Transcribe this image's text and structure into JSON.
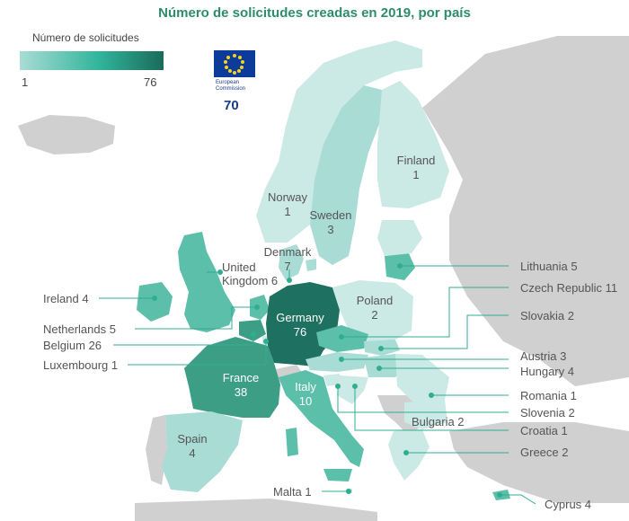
{
  "title": "Número de solicitudes creadas en 2019, por país",
  "legend": {
    "title": "Número de solicitudes",
    "min": "1",
    "max": "76"
  },
  "ec": {
    "line1": "European",
    "line2": "Commission",
    "value": "70"
  },
  "countries": {
    "finland": {
      "name": "Finland",
      "value": "1"
    },
    "norway": {
      "name": "Norway",
      "value": "1"
    },
    "sweden": {
      "name": "Sweden",
      "value": "3"
    },
    "denmark": {
      "name": "Denmark",
      "value": "7"
    },
    "uk": {
      "name": "United Kingdom",
      "line1": "United",
      "line2": "Kingdom 6"
    },
    "ireland": {
      "label": "Ireland 4"
    },
    "netherlands": {
      "label": "Netherlands 5"
    },
    "belgium": {
      "label": "Belgium 26"
    },
    "luxembourg": {
      "label": "Luxembourg 1"
    },
    "germany": {
      "name": "Germany",
      "value": "76"
    },
    "poland": {
      "name": "Poland",
      "value": "2"
    },
    "france": {
      "name": "France",
      "value": "38"
    },
    "italy": {
      "name": "Italy",
      "value": "10"
    },
    "spain": {
      "name": "Spain",
      "value": "4"
    },
    "lithuania": {
      "label": "Lithuania 5"
    },
    "czech": {
      "label": "Czech Republic 11"
    },
    "slovakia": {
      "label": "Slovakia 2"
    },
    "austria": {
      "label": "Austria 3"
    },
    "hungary": {
      "label": "Hungary 4"
    },
    "romania": {
      "label": "Romania 1"
    },
    "slovenia": {
      "label": "Slovenia 2"
    },
    "croatia": {
      "label": "Croatia 1"
    },
    "bulgaria": {
      "label": "Bulgaria 2"
    },
    "greece": {
      "label": "Greece 2"
    },
    "malta": {
      "label": "Malta 1"
    },
    "cyprus": {
      "label": "Cyprus 4"
    }
  },
  "colors": {
    "lowest": "#cbe9e5",
    "low": "#a9dcd5",
    "mid": "#5bbfa9",
    "high": "#3d9e86",
    "highest": "#1e7060",
    "nodata": "#d0d0d0",
    "leader": "#2fae91"
  }
}
